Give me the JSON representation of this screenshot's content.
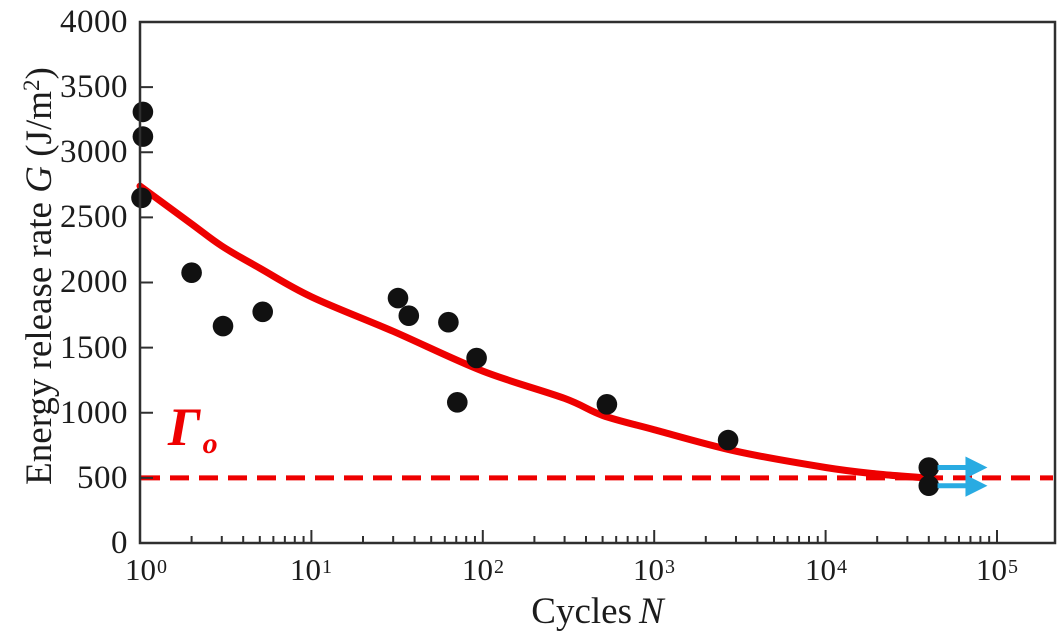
{
  "axes": {
    "x": {
      "title_prefix": "Cycles",
      "title_symbol": "N",
      "scale": "log",
      "ticks": [
        {
          "base": "10",
          "exp": "0"
        },
        {
          "base": "10",
          "exp": "1"
        },
        {
          "base": "10",
          "exp": "2"
        },
        {
          "base": "10",
          "exp": "3"
        },
        {
          "base": "10",
          "exp": "4"
        },
        {
          "base": "10",
          "exp": "5"
        }
      ]
    },
    "y": {
      "title_prefix": "Energy release rate ",
      "title_symbol": "G",
      "unit_open": " (J/m",
      "unit_sup": "2",
      "unit_close": ")",
      "ticks": [
        "0",
        "500",
        "1000",
        "1500",
        "2000",
        "2500",
        "3000",
        "3500",
        "4000"
      ]
    }
  },
  "threshold": {
    "symbol": "Γ",
    "subscript": "o"
  },
  "colors": {
    "curve": "#ee0000",
    "threshold_line": "#ee0000",
    "threshold_label": "#ee0000",
    "points": "#111111",
    "arrows": "#29abe2",
    "axis": "#2f2f2f"
  },
  "chart_data": {
    "type": "scatter",
    "title": "",
    "xlabel": "Cycles N",
    "ylabel": "Energy release rate G (J/m2)",
    "x_scale": "log",
    "xlim": [
      1,
      220000
    ],
    "ylim": [
      0,
      4000
    ],
    "grid": false,
    "x_tick_values": [
      1,
      10,
      100,
      1000,
      10000,
      100000
    ],
    "y_tick_values": [
      0,
      500,
      1000,
      1500,
      2000,
      2500,
      3000,
      3500,
      4000
    ],
    "points": [
      [
        1.04,
        3310
      ],
      [
        1.04,
        3120
      ],
      [
        1.02,
        2650
      ],
      [
        2,
        2075
      ],
      [
        3.05,
        1665
      ],
      [
        5.2,
        1775
      ],
      [
        32,
        1880
      ],
      [
        37,
        1745
      ],
      [
        63,
        1695
      ],
      [
        92,
        1420
      ],
      [
        71,
        1080
      ],
      [
        530,
        1065
      ],
      [
        2700,
        790
      ],
      [
        40000,
        580
      ],
      [
        40000,
        440
      ]
    ],
    "fit_curve": {
      "samples": [
        [
          1,
          2740
        ],
        [
          2,
          2450
        ],
        [
          3,
          2280
        ],
        [
          5,
          2110
        ],
        [
          10,
          1890
        ],
        [
          30,
          1625
        ],
        [
          100,
          1320
        ],
        [
          300,
          1110
        ],
        [
          500,
          980
        ],
        [
          1000,
          870
        ],
        [
          3000,
          705
        ],
        [
          10000,
          580
        ],
        [
          20000,
          530
        ],
        [
          43000,
          495
        ]
      ]
    },
    "threshold": {
      "value": 500,
      "label": "Γo"
    },
    "arrows": [
      {
        "g": 580,
        "n_from": 45000,
        "n_tip": 88000
      },
      {
        "g": 440,
        "n_from": 45000,
        "n_tip": 88000
      }
    ]
  }
}
